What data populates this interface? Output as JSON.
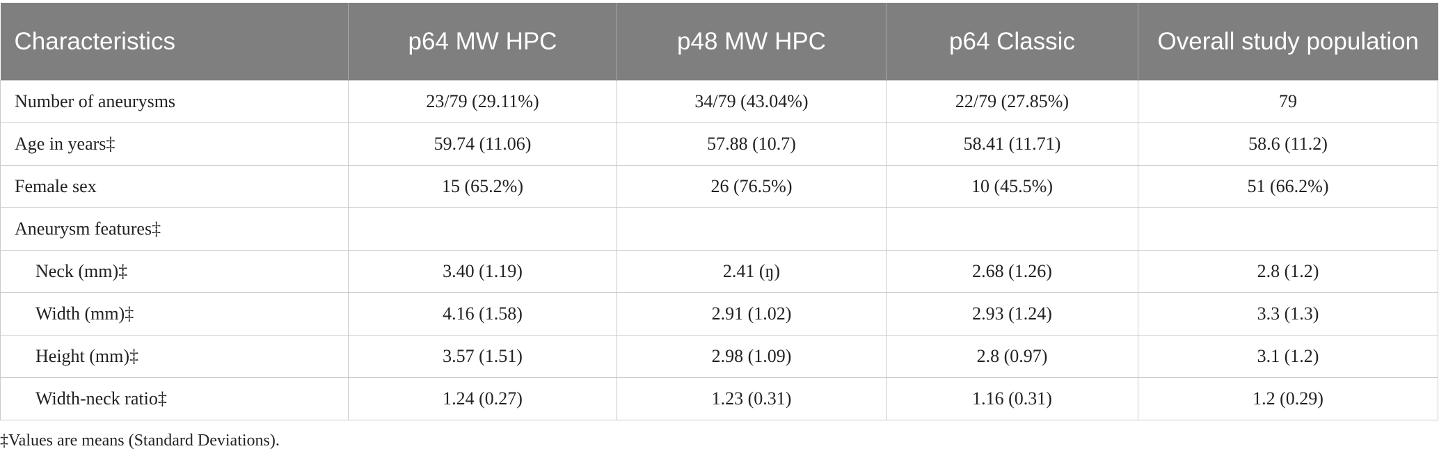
{
  "table": {
    "header": [
      "Characteristics",
      "p64 MW HPC",
      "p48 MW HPC",
      "p64 Classic",
      "Overall study population"
    ],
    "rows": [
      [
        "Number of aneurysms",
        "23/79 (29.11%)",
        "34/79 (43.04%)",
        "22/79 (27.85%)",
        "79"
      ],
      [
        "Age in years‡",
        "59.74 (11.06)",
        "57.88 (10.7)",
        "58.41 (11.71)",
        "58.6 (11.2)"
      ],
      [
        "Female sex",
        "15 (65.2%)",
        "26 (76.5%)",
        "10 (45.5%)",
        "51 (66.2%)"
      ],
      [
        "Aneurysm features‡",
        "",
        "",
        "",
        ""
      ],
      [
        "Neck (mm)‡",
        "3.40 (1.19)",
        "2.41 (ŋ)",
        "2.68 (1.26)",
        "2.8 (1.2)"
      ],
      [
        "Width (mm)‡",
        "4.16 (1.58)",
        "2.91 (1.02)",
        "2.93 (1.24)",
        "3.3 (1.3)"
      ],
      [
        "Height (mm)‡",
        "3.57 (1.51)",
        "2.98 (1.09)",
        "2.8 (0.97)",
        "3.1 (1.2)"
      ],
      [
        "Width-neck ratio‡",
        "1.24 (0.27)",
        "1.23 (0.31)",
        "1.16 (0.31)",
        "1.2 (0.29)"
      ]
    ],
    "footnote": "‡Values are means (Standard Deviations)."
  }
}
